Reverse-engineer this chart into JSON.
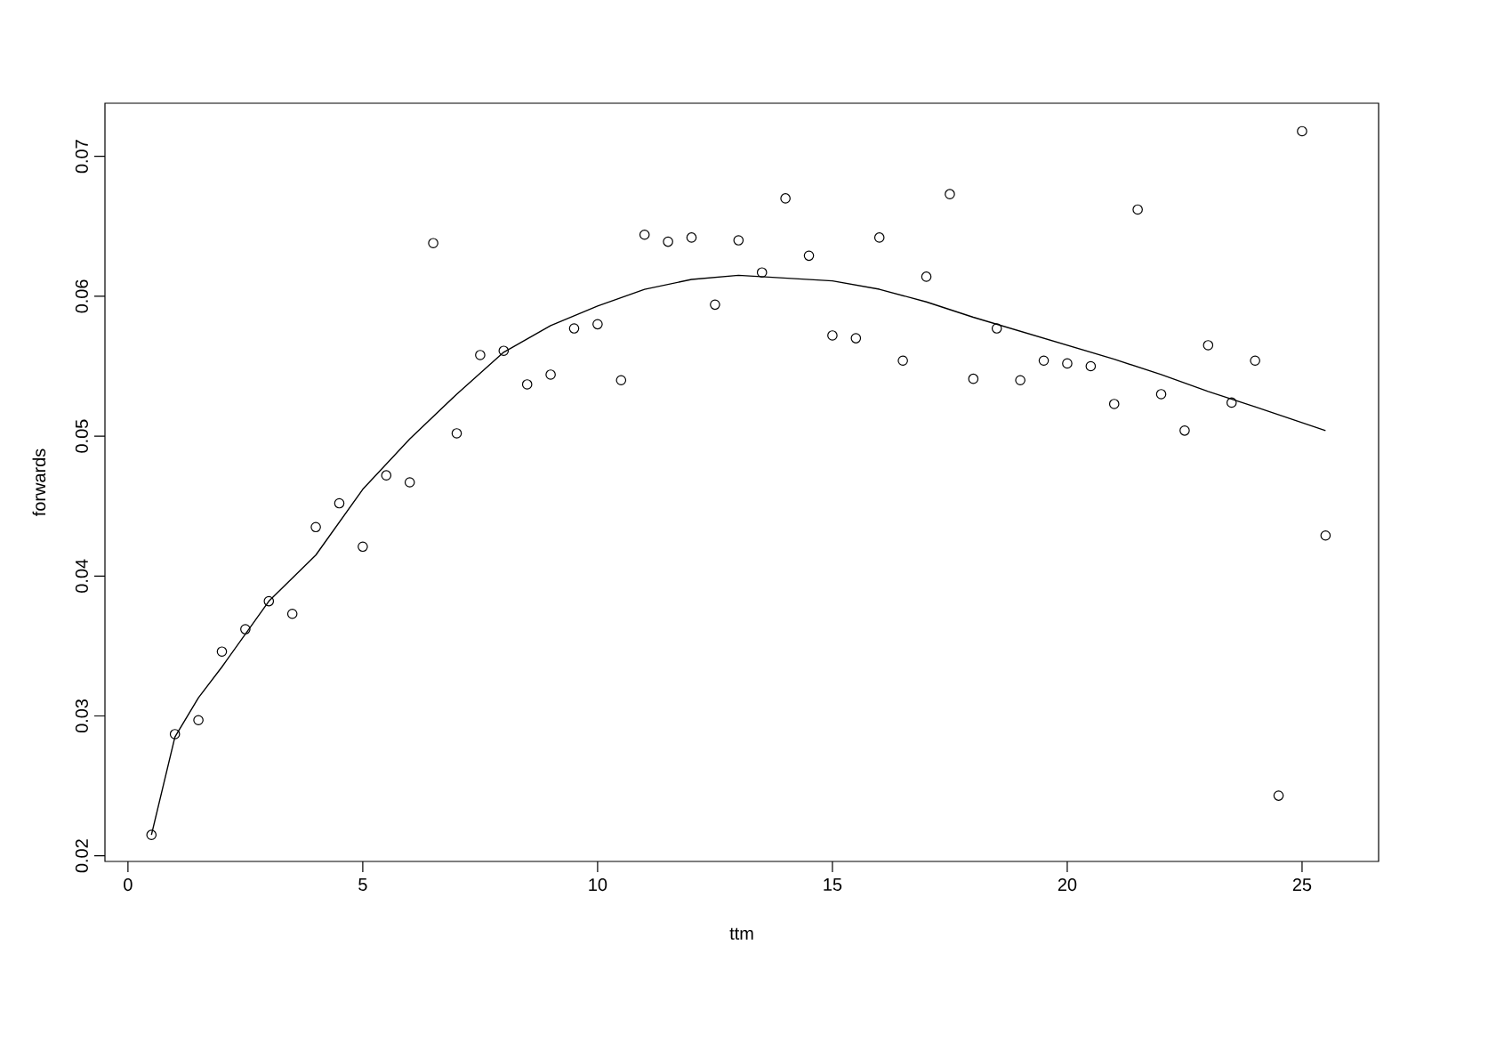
{
  "chart_data": {
    "type": "scatter",
    "xlabel": "ttm",
    "ylabel": "forwards",
    "xlim": [
      -0.49,
      26.63
    ],
    "ylim": [
      0.0196,
      0.0738
    ],
    "xticks": [
      0,
      5,
      10,
      15,
      20,
      25
    ],
    "yticks": [
      0.02,
      0.03,
      0.04,
      0.05,
      0.06,
      0.07
    ],
    "marker": "circle",
    "series": [
      {
        "color": "#000000",
        "x": [
          0.5,
          1,
          1.5,
          2,
          2.5,
          3,
          3.5,
          4,
          4.5,
          5,
          5.5,
          6,
          6.5,
          7,
          7.5,
          8,
          8.5,
          9,
          9.5,
          10,
          10.5,
          11,
          11.5,
          12,
          12.5,
          13,
          13.5,
          14,
          14.5,
          15,
          15.5,
          16,
          16.5,
          17,
          17.5,
          18,
          18.5,
          19,
          19.5,
          20,
          20.5,
          21,
          21.5,
          22,
          22.5,
          23,
          23.5,
          24,
          24.5,
          25,
          25.5
        ],
        "values": [
          0.0215,
          0.0287,
          0.0297,
          0.0346,
          0.0362,
          0.0382,
          0.0373,
          0.0435,
          0.0452,
          0.0421,
          0.0472,
          0.0467,
          0.0638,
          0.0502,
          0.0558,
          0.0561,
          0.0537,
          0.0544,
          0.0577,
          0.058,
          0.054,
          0.0644,
          0.0639,
          0.0642,
          0.0594,
          0.064,
          0.0617,
          0.067,
          0.0629,
          0.0572,
          0.057,
          0.0642,
          0.0554,
          0.0614,
          0.0673,
          0.0541,
          0.0577,
          0.054,
          0.0554,
          0.0552,
          0.055,
          0.0523,
          0.0662,
          0.053,
          0.0504,
          0.0565,
          0.0524,
          0.0554,
          0.0243,
          0.0718,
          0.0429
        ]
      },
      {
        "type": "line",
        "color": "#000000",
        "line_style": "solid",
        "marker": "none",
        "x": [
          0.5,
          1,
          1.5,
          2,
          3,
          4,
          5,
          6,
          7,
          8,
          9,
          10,
          11,
          12,
          13,
          14,
          15,
          16,
          17,
          18,
          19,
          20,
          21,
          22,
          23,
          24,
          25.5
        ],
        "values": [
          0.0215,
          0.0285,
          0.0313,
          0.0335,
          0.0382,
          0.0415,
          0.0462,
          0.0498,
          0.053,
          0.056,
          0.0579,
          0.0593,
          0.0605,
          0.0612,
          0.0615,
          0.0613,
          0.0611,
          0.0605,
          0.0596,
          0.0585,
          0.0575,
          0.0565,
          0.0555,
          0.0544,
          0.0532,
          0.0521,
          0.0504
        ]
      }
    ]
  }
}
